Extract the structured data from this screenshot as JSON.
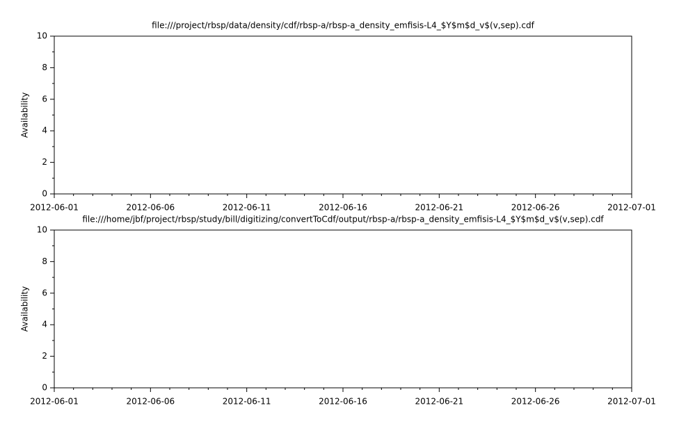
{
  "chart_data": [
    {
      "type": "line",
      "title": "file:///project/rbsp/data/density/cdf/rbsp-a/rbsp-a_density_emfisis-L4_$Y$m$d_v$(v,sep).cdf",
      "ylabel": "Availability",
      "series": [],
      "xlim": [
        "2012-06-01",
        "2012-07-01"
      ],
      "xticks": [
        "2012-06-01",
        "2012-06-06",
        "2012-06-11",
        "2012-06-16",
        "2012-06-21",
        "2012-06-26",
        "2012-07-01"
      ],
      "xminorticks": [
        "2012-06-02",
        "2012-06-03",
        "2012-06-04",
        "2012-06-05",
        "2012-06-07",
        "2012-06-08",
        "2012-06-09",
        "2012-06-10",
        "2012-06-12",
        "2012-06-13",
        "2012-06-14",
        "2012-06-15",
        "2012-06-17",
        "2012-06-18",
        "2012-06-19",
        "2012-06-20",
        "2012-06-22",
        "2012-06-23",
        "2012-06-24",
        "2012-06-25",
        "2012-06-27",
        "2012-06-28",
        "2012-06-29",
        "2012-06-30"
      ],
      "ylim": [
        0,
        10
      ],
      "yticks": [
        0,
        2,
        4,
        6,
        8,
        10
      ],
      "yminorticks": [
        1,
        3,
        5,
        7,
        9
      ]
    },
    {
      "type": "line",
      "title": "file:///home/jbf/project/rbsp/study/bill/digitizing/convertToCdf/output/rbsp-a/rbsp-a_density_emfisis-L4_$Y$m$d_v$(v,sep).cdf",
      "ylabel": "Availability",
      "series": [],
      "xlim": [
        "2012-06-01",
        "2012-07-01"
      ],
      "xticks": [
        "2012-06-01",
        "2012-06-06",
        "2012-06-11",
        "2012-06-16",
        "2012-06-21",
        "2012-06-26",
        "2012-07-01"
      ],
      "xminorticks": [
        "2012-06-02",
        "2012-06-03",
        "2012-06-04",
        "2012-06-05",
        "2012-06-07",
        "2012-06-08",
        "2012-06-09",
        "2012-06-10",
        "2012-06-12",
        "2012-06-13",
        "2012-06-14",
        "2012-06-15",
        "2012-06-17",
        "2012-06-18",
        "2012-06-19",
        "2012-06-20",
        "2012-06-22",
        "2012-06-23",
        "2012-06-24",
        "2012-06-25",
        "2012-06-27",
        "2012-06-28",
        "2012-06-29",
        "2012-06-30"
      ],
      "ylim": [
        0,
        10
      ],
      "yticks": [
        0,
        2,
        4,
        6,
        8,
        10
      ],
      "yminorticks": [
        1,
        3,
        5,
        7,
        9
      ]
    }
  ]
}
